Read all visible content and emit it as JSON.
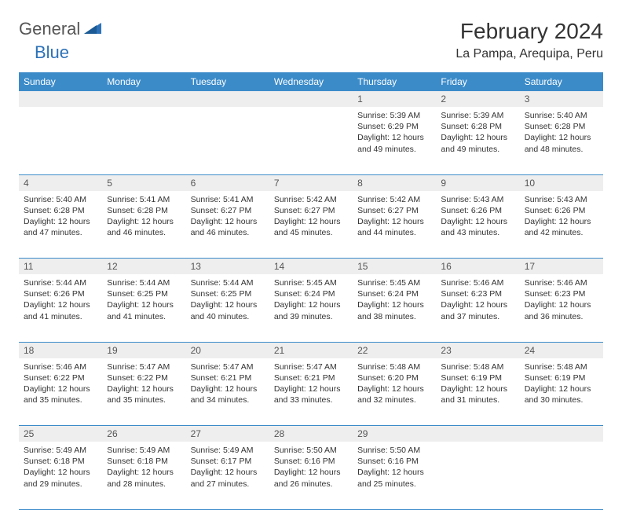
{
  "logo": {
    "part1": "General",
    "part2": "Blue"
  },
  "title": "February 2024",
  "location": "La Pampa, Arequipa, Peru",
  "colors": {
    "header_bg": "#3b8bc9",
    "header_fg": "#ffffff",
    "daynum_bg": "#eeeeee",
    "rule": "#3b8bc9",
    "logo_blue": "#2d72b8"
  },
  "day_headers": [
    "Sunday",
    "Monday",
    "Tuesday",
    "Wednesday",
    "Thursday",
    "Friday",
    "Saturday"
  ],
  "weeks": [
    [
      null,
      null,
      null,
      null,
      {
        "n": "1",
        "sunrise": "5:39 AM",
        "sunset": "6:29 PM",
        "dl1": "Daylight: 12 hours",
        "dl2": "and 49 minutes."
      },
      {
        "n": "2",
        "sunrise": "5:39 AM",
        "sunset": "6:28 PM",
        "dl1": "Daylight: 12 hours",
        "dl2": "and 49 minutes."
      },
      {
        "n": "3",
        "sunrise": "5:40 AM",
        "sunset": "6:28 PM",
        "dl1": "Daylight: 12 hours",
        "dl2": "and 48 minutes."
      }
    ],
    [
      {
        "n": "4",
        "sunrise": "5:40 AM",
        "sunset": "6:28 PM",
        "dl1": "Daylight: 12 hours",
        "dl2": "and 47 minutes."
      },
      {
        "n": "5",
        "sunrise": "5:41 AM",
        "sunset": "6:28 PM",
        "dl1": "Daylight: 12 hours",
        "dl2": "and 46 minutes."
      },
      {
        "n": "6",
        "sunrise": "5:41 AM",
        "sunset": "6:27 PM",
        "dl1": "Daylight: 12 hours",
        "dl2": "and 46 minutes."
      },
      {
        "n": "7",
        "sunrise": "5:42 AM",
        "sunset": "6:27 PM",
        "dl1": "Daylight: 12 hours",
        "dl2": "and 45 minutes."
      },
      {
        "n": "8",
        "sunrise": "5:42 AM",
        "sunset": "6:27 PM",
        "dl1": "Daylight: 12 hours",
        "dl2": "and 44 minutes."
      },
      {
        "n": "9",
        "sunrise": "5:43 AM",
        "sunset": "6:26 PM",
        "dl1": "Daylight: 12 hours",
        "dl2": "and 43 minutes."
      },
      {
        "n": "10",
        "sunrise": "5:43 AM",
        "sunset": "6:26 PM",
        "dl1": "Daylight: 12 hours",
        "dl2": "and 42 minutes."
      }
    ],
    [
      {
        "n": "11",
        "sunrise": "5:44 AM",
        "sunset": "6:26 PM",
        "dl1": "Daylight: 12 hours",
        "dl2": "and 41 minutes."
      },
      {
        "n": "12",
        "sunrise": "5:44 AM",
        "sunset": "6:25 PM",
        "dl1": "Daylight: 12 hours",
        "dl2": "and 41 minutes."
      },
      {
        "n": "13",
        "sunrise": "5:44 AM",
        "sunset": "6:25 PM",
        "dl1": "Daylight: 12 hours",
        "dl2": "and 40 minutes."
      },
      {
        "n": "14",
        "sunrise": "5:45 AM",
        "sunset": "6:24 PM",
        "dl1": "Daylight: 12 hours",
        "dl2": "and 39 minutes."
      },
      {
        "n": "15",
        "sunrise": "5:45 AM",
        "sunset": "6:24 PM",
        "dl1": "Daylight: 12 hours",
        "dl2": "and 38 minutes."
      },
      {
        "n": "16",
        "sunrise": "5:46 AM",
        "sunset": "6:23 PM",
        "dl1": "Daylight: 12 hours",
        "dl2": "and 37 minutes."
      },
      {
        "n": "17",
        "sunrise": "5:46 AM",
        "sunset": "6:23 PM",
        "dl1": "Daylight: 12 hours",
        "dl2": "and 36 minutes."
      }
    ],
    [
      {
        "n": "18",
        "sunrise": "5:46 AM",
        "sunset": "6:22 PM",
        "dl1": "Daylight: 12 hours",
        "dl2": "and 35 minutes."
      },
      {
        "n": "19",
        "sunrise": "5:47 AM",
        "sunset": "6:22 PM",
        "dl1": "Daylight: 12 hours",
        "dl2": "and 35 minutes."
      },
      {
        "n": "20",
        "sunrise": "5:47 AM",
        "sunset": "6:21 PM",
        "dl1": "Daylight: 12 hours",
        "dl2": "and 34 minutes."
      },
      {
        "n": "21",
        "sunrise": "5:47 AM",
        "sunset": "6:21 PM",
        "dl1": "Daylight: 12 hours",
        "dl2": "and 33 minutes."
      },
      {
        "n": "22",
        "sunrise": "5:48 AM",
        "sunset": "6:20 PM",
        "dl1": "Daylight: 12 hours",
        "dl2": "and 32 minutes."
      },
      {
        "n": "23",
        "sunrise": "5:48 AM",
        "sunset": "6:19 PM",
        "dl1": "Daylight: 12 hours",
        "dl2": "and 31 minutes."
      },
      {
        "n": "24",
        "sunrise": "5:48 AM",
        "sunset": "6:19 PM",
        "dl1": "Daylight: 12 hours",
        "dl2": "and 30 minutes."
      }
    ],
    [
      {
        "n": "25",
        "sunrise": "5:49 AM",
        "sunset": "6:18 PM",
        "dl1": "Daylight: 12 hours",
        "dl2": "and 29 minutes."
      },
      {
        "n": "26",
        "sunrise": "5:49 AM",
        "sunset": "6:18 PM",
        "dl1": "Daylight: 12 hours",
        "dl2": "and 28 minutes."
      },
      {
        "n": "27",
        "sunrise": "5:49 AM",
        "sunset": "6:17 PM",
        "dl1": "Daylight: 12 hours",
        "dl2": "and 27 minutes."
      },
      {
        "n": "28",
        "sunrise": "5:50 AM",
        "sunset": "6:16 PM",
        "dl1": "Daylight: 12 hours",
        "dl2": "and 26 minutes."
      },
      {
        "n": "29",
        "sunrise": "5:50 AM",
        "sunset": "6:16 PM",
        "dl1": "Daylight: 12 hours",
        "dl2": "and 25 minutes."
      },
      null,
      null
    ]
  ]
}
